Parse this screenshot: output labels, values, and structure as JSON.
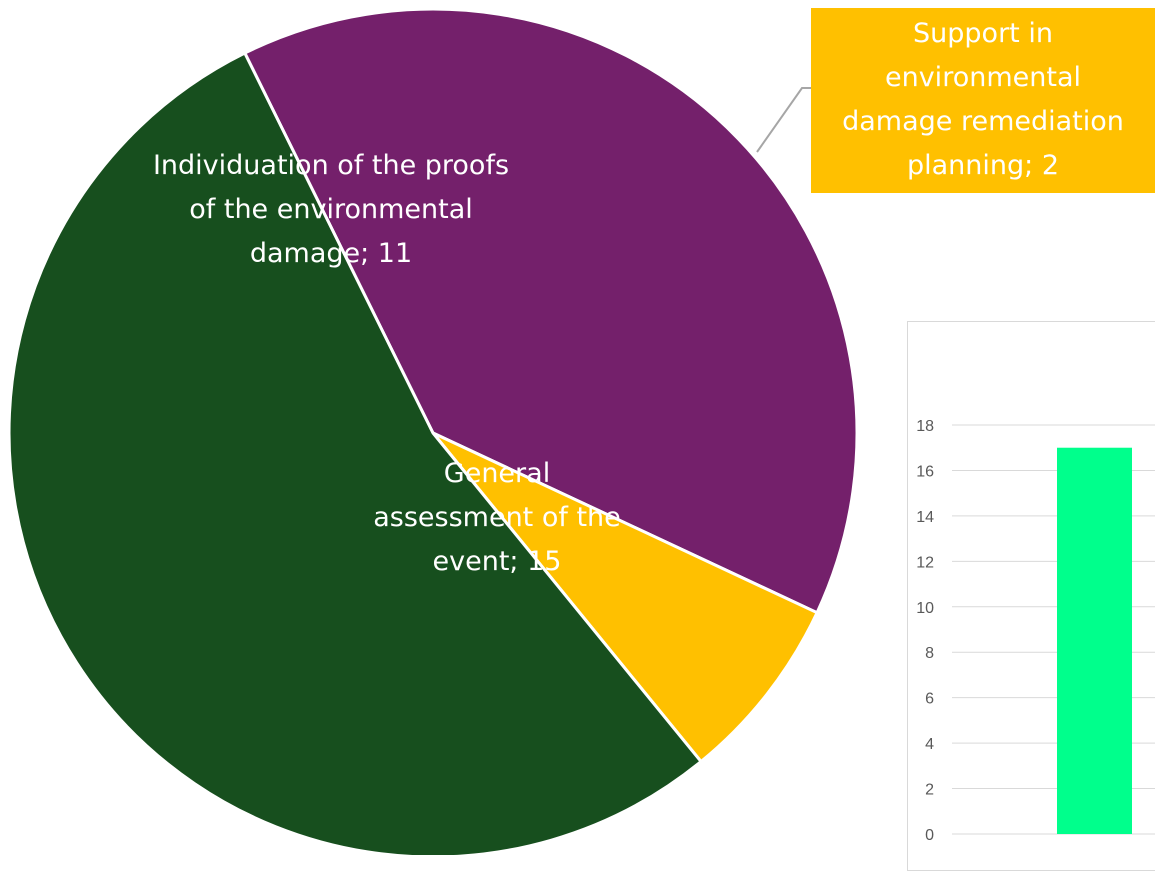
{
  "chart_data": [
    {
      "type": "pie",
      "slices": [
        {
          "label": "Individuation of the proofs of the environmental damage",
          "value": 11,
          "data_label": [
            "Individuation of the proofs",
            "of the environmental",
            "damage; 11"
          ],
          "color": "#74206B"
        },
        {
          "label": "Support in environmental damage remediation planning",
          "value": 2,
          "data_label": [
            "Support in",
            "environmental",
            "damage remediation",
            "planning; 2"
          ],
          "color": "#FFC000"
        },
        {
          "label": "General assessment of the event",
          "value": 15,
          "data_label": [
            "General",
            "assessment of the",
            "event; 15"
          ],
          "color": "#174F1E"
        }
      ]
    },
    {
      "type": "bar",
      "categories": [
        ""
      ],
      "values": [
        17
      ],
      "color": "#00FF8C",
      "ylim": [
        0,
        18
      ],
      "yticks": [
        "0",
        "2",
        "4",
        "6",
        "8",
        "10",
        "12",
        "14",
        "16",
        "18"
      ],
      "grid": true
    }
  ]
}
